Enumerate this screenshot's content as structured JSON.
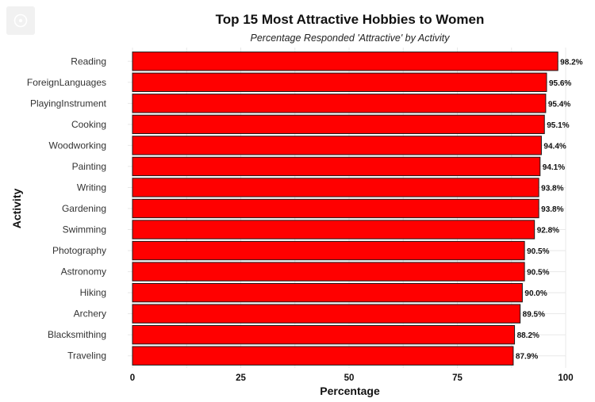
{
  "icons": {
    "corner_button": "image-icon"
  },
  "colors": {
    "bar_fill": "#ff0000",
    "bar_stroke": "#1a1a1a",
    "grid": "#e8e8e8"
  },
  "chart_data": {
    "type": "bar",
    "orientation": "horizontal",
    "title": "Top 15 Most Attractive Hobbies to Women",
    "subtitle": "Percentage Responded 'Attractive' by Activity",
    "xlabel": "Percentage",
    "ylabel": "Activity",
    "xlim": [
      0,
      100
    ],
    "xticks": [
      0,
      25,
      50,
      75,
      100
    ],
    "grid": true,
    "legend": "none",
    "categories": [
      "Reading",
      "ForeignLanguages",
      "PlayingInstrument",
      "Cooking",
      "Woodworking",
      "Painting",
      "Writing",
      "Gardening",
      "Swimming",
      "Photography",
      "Astronomy",
      "Hiking",
      "Archery",
      "Blacksmithing",
      "Traveling"
    ],
    "values": [
      98.2,
      95.6,
      95.4,
      95.1,
      94.4,
      94.1,
      93.8,
      93.8,
      92.8,
      90.5,
      90.5,
      90.0,
      89.5,
      88.2,
      87.9
    ],
    "data_labels": [
      "98.2%",
      "95.6%",
      "95.4%",
      "95.1%",
      "94.4%",
      "94.1%",
      "93.8%",
      "93.8%",
      "92.8%",
      "90.5%",
      "90.5%",
      "90.0%",
      "89.5%",
      "88.2%",
      "87.9%"
    ]
  }
}
